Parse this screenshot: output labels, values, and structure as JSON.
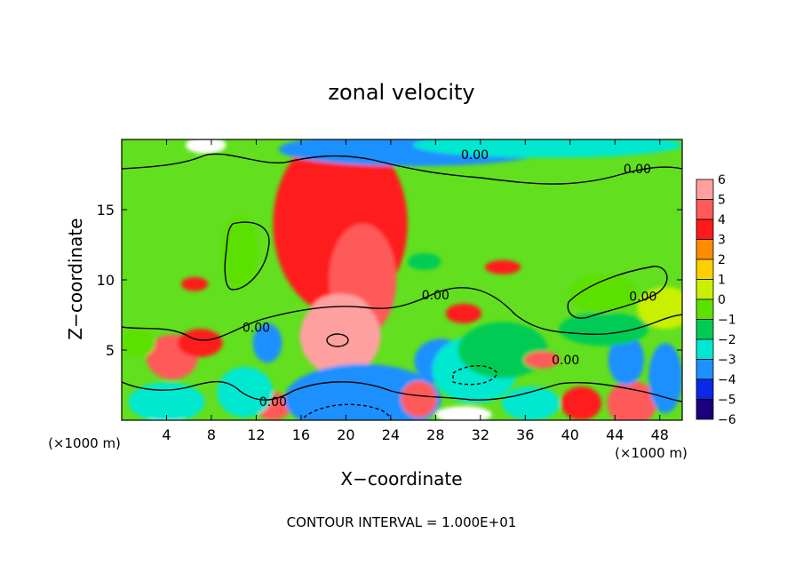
{
  "chart_data": {
    "type": "heatmap",
    "title": "zonal velocity",
    "xlabel": "X−coordinate",
    "ylabel": "Z−coordinate",
    "x_unit_left": "(×1000 m)",
    "x_unit_right": "(×1000 m)",
    "footer": "CONTOUR INTERVAL = 1.000E+01",
    "xlim": [
      0,
      50
    ],
    "ylim": [
      0,
      20
    ],
    "x_ticks": [
      4,
      8,
      12,
      16,
      20,
      24,
      28,
      32,
      36,
      40,
      44,
      48
    ],
    "x_tick_labels": [
      "4",
      "8",
      "12",
      "16",
      "20",
      "24",
      "28",
      "32",
      "36",
      "40",
      "44",
      "48"
    ],
    "y_ticks": [
      5,
      10,
      15
    ],
    "y_tick_labels": [
      "5",
      "10",
      "15"
    ],
    "colorbar": {
      "levels": [
        6,
        5,
        4,
        3,
        2,
        1,
        0,
        -1,
        -2,
        -3,
        -4,
        -5,
        -6
      ],
      "labels": [
        "6",
        "5",
        "4",
        "3",
        "2",
        "1",
        "0",
        "−1",
        "−2",
        "−3",
        "−4",
        "−5",
        "−6"
      ],
      "colors": [
        "#ffa0a0",
        "#ff5a5a",
        "#ff1a1a",
        "#ff8c00",
        "#ffd000",
        "#c8f000",
        "#5ce000",
        "#00cc55",
        "#00e8d0",
        "#1e90ff",
        "#0a28e6",
        "#1a007a"
      ]
    },
    "contour_labels": [
      {
        "text": "0.00",
        "x": 31.5,
        "y": 18.6
      },
      {
        "text": "0.00",
        "x": 46.0,
        "y": 17.6
      },
      {
        "text": "0.00",
        "x": 28.0,
        "y": 8.6
      },
      {
        "text": "0.00",
        "x": 46.5,
        "y": 8.5
      },
      {
        "text": "0.00",
        "x": 12.0,
        "y": 6.3
      },
      {
        "text": "0.00",
        "x": 39.6,
        "y": 4.0
      },
      {
        "text": "0.00",
        "x": 13.5,
        "y": 1.0
      }
    ],
    "features": [
      {
        "x": 20.5,
        "y": 11.8,
        "value": 6,
        "rx": 1.6,
        "ry": 1.2
      },
      {
        "x": 20.0,
        "y": 12.8,
        "value": 5,
        "rx": 4.0,
        "ry": 4.5
      },
      {
        "x": 19.5,
        "y": 14.0,
        "value": 3,
        "rx": 6.0,
        "ry": 6.5
      },
      {
        "x": 21.5,
        "y": 10.0,
        "value": 4,
        "rx": 3.0,
        "ry": 4.0
      },
      {
        "x": 19.5,
        "y": 5.5,
        "value": 6,
        "rx": 2.0,
        "ry": 1.4
      },
      {
        "x": 19.5,
        "y": 6.0,
        "value": 5,
        "rx": 3.6,
        "ry": 2.8
      },
      {
        "x": 19.5,
        "y": 7.8,
        "value": 5,
        "rx": 2.6,
        "ry": 1.2
      },
      {
        "x": 4.5,
        "y": 4.5,
        "value": 4,
        "rx": 2.3,
        "ry": 1.6
      },
      {
        "x": 7.0,
        "y": 5.5,
        "value": 3,
        "rx": 2.0,
        "ry": 1.0
      },
      {
        "x": 13.5,
        "y": 1.0,
        "value": 4,
        "rx": 1.6,
        "ry": 1.0
      },
      {
        "x": 21.5,
        "y": 1.2,
        "value": -6,
        "rx": 5.5,
        "ry": 1.6
      },
      {
        "x": 21.5,
        "y": 1.5,
        "value": -4,
        "rx": 7.0,
        "ry": 2.5
      },
      {
        "x": 4.0,
        "y": 0.6,
        "value": -6,
        "rx": 2.2,
        "ry": 0.8
      },
      {
        "x": 4.0,
        "y": 1.3,
        "value": -3,
        "rx": 3.4,
        "ry": 1.4
      },
      {
        "x": 13.0,
        "y": 5.5,
        "value": -4,
        "rx": 1.3,
        "ry": 1.4
      },
      {
        "x": 11.0,
        "y": 2.0,
        "value": -3,
        "rx": 2.5,
        "ry": 1.8
      },
      {
        "x": 27.5,
        "y": 4.1,
        "value": -6,
        "rx": 1.0,
        "ry": 0.8
      },
      {
        "x": 28.5,
        "y": 4.2,
        "value": -4,
        "rx": 2.4,
        "ry": 1.6
      },
      {
        "x": 31.5,
        "y": 3.2,
        "value": -6,
        "rx": 2.3,
        "ry": 1.2
      },
      {
        "x": 31.5,
        "y": 3.6,
        "value": -3,
        "rx": 3.8,
        "ry": 2.4
      },
      {
        "x": 34.0,
        "y": 5.0,
        "value": -2,
        "rx": 4.0,
        "ry": 2.0
      },
      {
        "x": 30.5,
        "y": 0.4,
        "value": -6,
        "rx": 2.5,
        "ry": 0.6
      },
      {
        "x": 26.5,
        "y": 1.5,
        "value": 4,
        "rx": 1.6,
        "ry": 1.3
      },
      {
        "x": 37.5,
        "y": 4.3,
        "value": 4,
        "rx": 1.6,
        "ry": 0.6
      },
      {
        "x": 36.5,
        "y": 1.2,
        "value": -3,
        "rx": 2.6,
        "ry": 1.2
      },
      {
        "x": 41.0,
        "y": 1.2,
        "value": 3,
        "rx": 1.8,
        "ry": 1.2
      },
      {
        "x": 45.5,
        "y": 1.0,
        "value": -6,
        "rx": 1.3,
        "ry": 0.9
      },
      {
        "x": 45.5,
        "y": 1.2,
        "value": 4,
        "rx": 2.2,
        "ry": 1.6
      },
      {
        "x": 45.0,
        "y": 4.2,
        "value": -6,
        "rx": 0.8,
        "ry": 0.8
      },
      {
        "x": 45.0,
        "y": 4.3,
        "value": -4,
        "rx": 1.6,
        "ry": 1.8
      },
      {
        "x": 48.5,
        "y": 3.0,
        "value": -4,
        "rx": 1.5,
        "ry": 2.5
      },
      {
        "x": 43.0,
        "y": 6.5,
        "value": -2,
        "rx": 4.0,
        "ry": 1.2
      },
      {
        "x": 7.5,
        "y": 19.6,
        "value": -6,
        "rx": 1.8,
        "ry": 0.6
      },
      {
        "x": 26.0,
        "y": 19.3,
        "value": -4,
        "rx": 12.0,
        "ry": 1.2
      },
      {
        "x": 38.0,
        "y": 19.6,
        "value": -3,
        "rx": 12.0,
        "ry": 0.9
      },
      {
        "x": 34.0,
        "y": 10.9,
        "value": 3,
        "rx": 1.6,
        "ry": 0.5
      },
      {
        "x": 30.5,
        "y": 7.6,
        "value": 3,
        "rx": 1.6,
        "ry": 0.7
      },
      {
        "x": 27.0,
        "y": 11.3,
        "value": -2,
        "rx": 1.5,
        "ry": 0.6
      },
      {
        "x": 10.5,
        "y": 12.0,
        "value": -1,
        "rx": 1.6,
        "ry": 2.6
      },
      {
        "x": 43.0,
        "y": 9.0,
        "value": -1,
        "rx": 3.0,
        "ry": 1.4
      },
      {
        "x": 48.5,
        "y": 8.0,
        "value": 0,
        "rx": 2.5,
        "ry": 1.5
      },
      {
        "x": 6.5,
        "y": 9.7,
        "value": 3,
        "rx": 1.2,
        "ry": 0.5
      },
      {
        "x": 1.5,
        "y": 5.5,
        "value": -1,
        "rx": 1.5,
        "ry": 1.0
      }
    ]
  }
}
